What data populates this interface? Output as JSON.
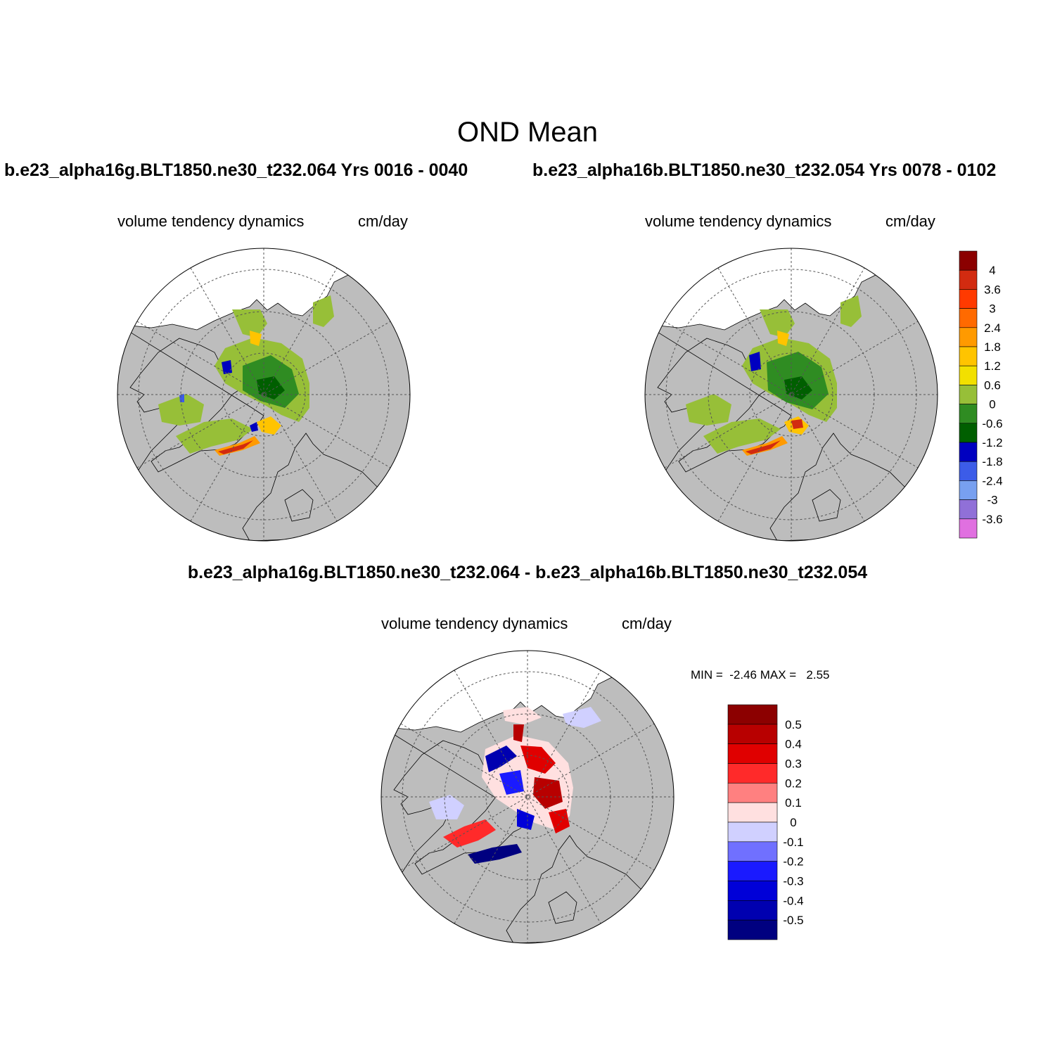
{
  "figure": {
    "title": "OND Mean",
    "left_run_title": "b.e23_alpha16g.BLT1850.ne30_t232.064  Yrs 0016 - 0040",
    "right_run_title": "b.e23_alpha16b.BLT1850.ne30_t232.054  Yrs 0078 - 0102",
    "diff_title": "b.e23_alpha16g.BLT1850.ne30_t232.064 - b.e23_alpha16b.BLT1850.ne30_t232.054"
  },
  "panels": {
    "left": {
      "variable": "volume tendency dynamics",
      "units": "cm/day"
    },
    "right": {
      "variable": "volume tendency dynamics",
      "units": "cm/day"
    },
    "diff": {
      "variable": "volume tendency dynamics",
      "units": "cm/day",
      "minmax": "MIN =  -2.46 MAX =   2.55"
    }
  },
  "colors": {
    "land": "#bdbdbd",
    "ocean": "#ffffff",
    "outline": "#000000"
  },
  "chart_data": [
    {
      "type": "heatmap",
      "projection": "north polar stereographic",
      "colorbar": {
        "labels": [
          "4",
          "3.6",
          "3",
          "2.4",
          "1.8",
          "1.2",
          "0.6",
          "0",
          "-0.6",
          "-1.2",
          "-1.8",
          "-2.4",
          "-3",
          "-3.6"
        ],
        "colors": [
          "#8b0000",
          "#d22b10",
          "#ff3a00",
          "#ff6a00",
          "#ff9a00",
          "#ffc400",
          "#f2e000",
          "#97bf38",
          "#2f8c22",
          "#005f00",
          "#0000c0",
          "#3c5ce8",
          "#78a0f0",
          "#9070d8",
          "#e070e0"
        ]
      }
    },
    {
      "type": "heatmap",
      "projection": "north polar stereographic",
      "colorbar": {
        "labels": [
          "0.5",
          "0.4",
          "0.3",
          "0.2",
          "0.1",
          "0",
          "-0.1",
          "-0.2",
          "-0.3",
          "-0.4",
          "-0.5"
        ],
        "colors": [
          "#8c0000",
          "#b80000",
          "#e00000",
          "#ff2a2a",
          "#ff8080",
          "#ffe0e0",
          "#d0d0ff",
          "#7070ff",
          "#1a1aff",
          "#0000d8",
          "#0000b0",
          "#000080"
        ]
      },
      "min": -2.46,
      "max": 2.55
    }
  ]
}
